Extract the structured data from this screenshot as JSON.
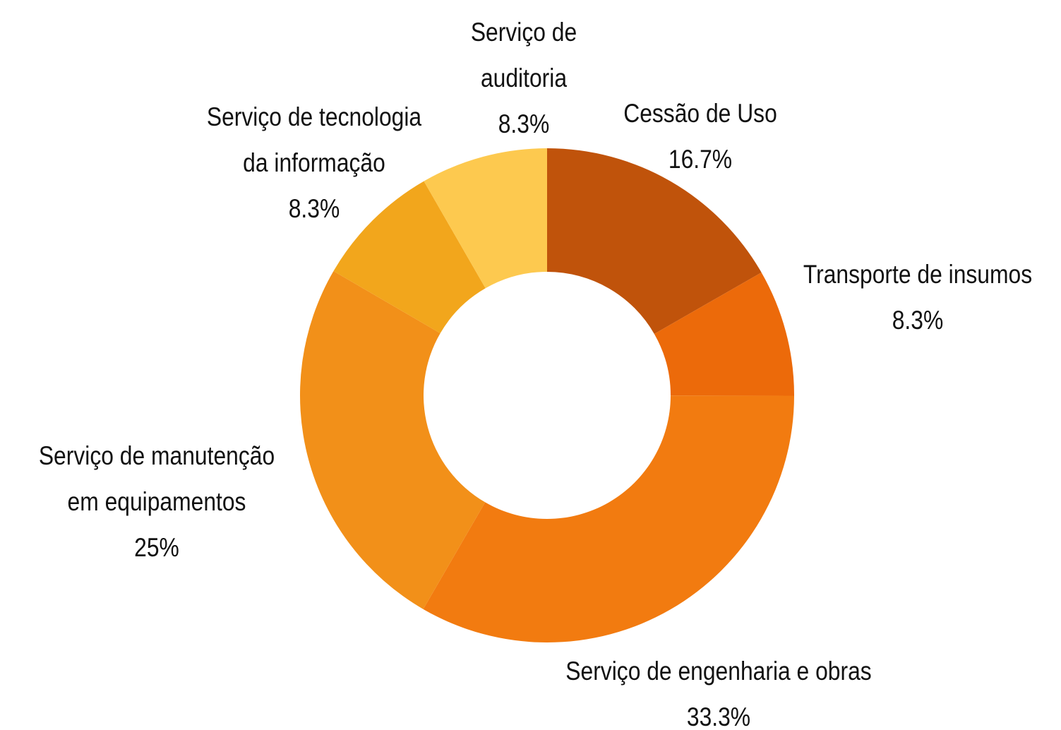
{
  "chart_data": {
    "type": "donut",
    "categories": [
      "Cessão de Uso",
      "Transporte de insumos",
      "Serviço de engenharia e obras",
      "Serviço de manutenção em equipamentos",
      "Serviço de tecnologia da informação",
      "Serviço de auditoria"
    ],
    "values": [
      16.7,
      8.3,
      33.3,
      25,
      8.3,
      8.3
    ],
    "value_labels": [
      "16.7%",
      "8.3%",
      "33.3%",
      "25%",
      "8.3%",
      "8.3%"
    ],
    "colors": [
      "#c0530b",
      "#ec6a0a",
      "#f27b10",
      "#f29019",
      "#f2a61c",
      "#fdc94f"
    ]
  }
}
